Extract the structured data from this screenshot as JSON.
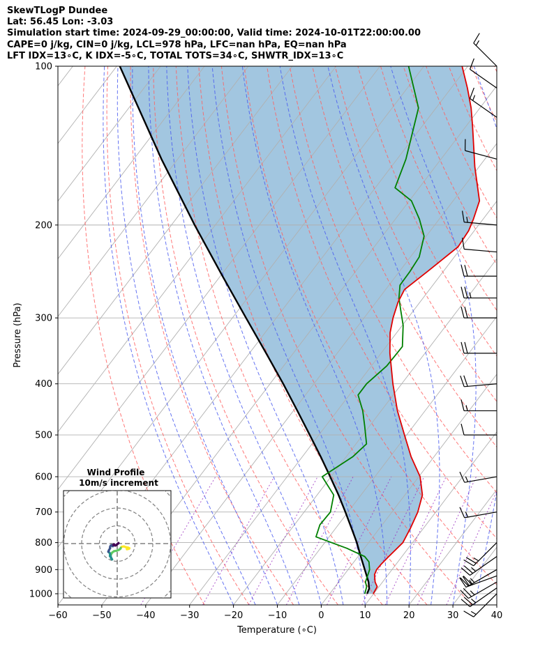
{
  "header": {
    "line1": "SkewTLogP Dundee",
    "line2": "Lat: 56.45   Lon: -3.03",
    "line3": "Simulation start time: 2024-09-29_00:00:00, Valid time: 2024-10-01T22:00:00.00",
    "line4": "CAPE=0 j/kg, CIN=0 j/kg, LCL=978 hPa, LFC=nan hPa, EQ=nan hPa",
    "line5": "LFT IDX=13∘C, K IDX=-5∘C, TOTAL TOTS=34∘C, SHWTR_IDX=13∘C"
  },
  "chart_data": [
    {
      "type": "line",
      "subtype": "skew-t log-p",
      "xlabel": "Temperature (∘C)",
      "ylabel": "Pressure (hPa)",
      "xlim": [
        -60,
        40
      ],
      "ylim": [
        1050,
        100
      ],
      "yscale": "log",
      "xticks": [
        "−60",
        "−50",
        "−40",
        "−30",
        "−20",
        "−10",
        "0",
        "10",
        "20",
        "30",
        "40"
      ],
      "xtick_values": [
        -60,
        -50,
        -40,
        -30,
        -20,
        -10,
        0,
        10,
        20,
        30,
        40
      ],
      "yticks": [
        "100",
        "200",
        "300",
        "400",
        "500",
        "600",
        "700",
        "800",
        "900",
        "1000"
      ],
      "ytick_values": [
        100,
        200,
        300,
        400,
        500,
        600,
        700,
        800,
        900,
        1000
      ],
      "grid": true,
      "colors": {
        "temperature": "#e00000",
        "dewpoint": "#008000",
        "parcel": "#000000",
        "cape_fill": "#a2c6e0",
        "dry_adiabat": "#ff6060",
        "moist_adiabat": "#4a5cf0",
        "mixing_ratio": "#9b30c0",
        "isotherm": "#b0b0b0"
      },
      "series": [
        {
          "key": "temperature",
          "points": [
            [
              1000,
              9.9
            ],
            [
              970,
              9.6
            ],
            [
              950,
              8.3
            ],
            [
              920,
              6.9
            ],
            [
              900,
              6.5
            ],
            [
              880,
              6.6
            ],
            [
              850,
              7.0
            ],
            [
              800,
              7.8
            ],
            [
              750,
              7.0
            ],
            [
              700,
              5.9
            ],
            [
              650,
              4.0
            ],
            [
              600,
              0.3
            ],
            [
              550,
              -5.2
            ],
            [
              500,
              -10.5
            ],
            [
              450,
              -16.3
            ],
            [
              400,
              -22.0
            ],
            [
              350,
              -28.0
            ],
            [
              320,
              -31.5
            ],
            [
              300,
              -33.4
            ],
            [
              280,
              -35.0
            ],
            [
              265,
              -35.7
            ],
            [
              245,
              -33.6
            ],
            [
              220,
              -30.9
            ],
            [
              205,
              -31.3
            ],
            [
              195,
              -32.2
            ],
            [
              180,
              -34.0
            ],
            [
              155,
              -41.0
            ],
            [
              130,
              -48.5
            ],
            [
              120,
              -52.0
            ],
            [
              110,
              -56.3
            ],
            [
              100,
              -61.3
            ]
          ]
        },
        {
          "key": "dewpoint",
          "points": [
            [
              1000,
              8.0
            ],
            [
              970,
              7.2
            ],
            [
              950,
              6.1
            ],
            [
              920,
              5.4
            ],
            [
              900,
              4.9
            ],
            [
              870,
              3.4
            ],
            [
              850,
              1.5
            ],
            [
              820,
              -4.0
            ],
            [
              780,
              -13.0
            ],
            [
              740,
              -14.2
            ],
            [
              700,
              -14.0
            ],
            [
              650,
              -16.2
            ],
            [
              600,
              -22.0
            ],
            [
              550,
              -18.5
            ],
            [
              520,
              -17.6
            ],
            [
              480,
              -21.2
            ],
            [
              450,
              -24.2
            ],
            [
              420,
              -28.0
            ],
            [
              400,
              -28.0
            ],
            [
              370,
              -26.5
            ],
            [
              340,
              -26.3
            ],
            [
              310,
              -29.8
            ],
            [
              290,
              -33.0
            ],
            [
              275,
              -35.5
            ],
            [
              260,
              -37.5
            ],
            [
              245,
              -37.6
            ],
            [
              230,
              -38.0
            ],
            [
              210,
              -40.5
            ],
            [
              195,
              -44.5
            ],
            [
              180,
              -49.5
            ],
            [
              170,
              -55.5
            ],
            [
              150,
              -58.0
            ],
            [
              120,
              -64.0
            ],
            [
              100,
              -73.5
            ]
          ]
        },
        {
          "key": "parcel",
          "points": [
            [
              1000,
              8.5
            ],
            [
              978,
              8.1
            ],
            [
              950,
              6.8
            ],
            [
              900,
              3.8
            ],
            [
              850,
              0.6
            ],
            [
              800,
              -2.7
            ],
            [
              750,
              -6.5
            ],
            [
              700,
              -10.6
            ],
            [
              650,
              -15.1
            ],
            [
              600,
              -20.2
            ],
            [
              550,
              -25.8
            ],
            [
              500,
              -32.1
            ],
            [
              450,
              -39.1
            ],
            [
              400,
              -47.0
            ],
            [
              350,
              -56.2
            ],
            [
              300,
              -66.9
            ],
            [
              250,
              -79.5
            ],
            [
              200,
              -94.7
            ],
            [
              150,
              -113.7
            ],
            [
              100,
              -139.3
            ]
          ]
        }
      ],
      "wind_barbs": [
        {
          "pressure": 1000,
          "speed_kt": 15,
          "direction": 225
        },
        {
          "pressure": 975,
          "speed_kt": 25,
          "direction": 235
        },
        {
          "pressure": 950,
          "speed_kt": 25,
          "direction": 240
        },
        {
          "pressure": 925,
          "speed_kt": 25,
          "direction": 250
        },
        {
          "pressure": 900,
          "speed_kt": 25,
          "direction": 240
        },
        {
          "pressure": 850,
          "speed_kt": 25,
          "direction": 235
        },
        {
          "pressure": 800,
          "speed_kt": 25,
          "direction": 225
        },
        {
          "pressure": 700,
          "speed_kt": 15,
          "direction": 260
        },
        {
          "pressure": 600,
          "speed_kt": 15,
          "direction": 260
        },
        {
          "pressure": 500,
          "speed_kt": 10,
          "direction": 270
        },
        {
          "pressure": 450,
          "speed_kt": 15,
          "direction": 270
        },
        {
          "pressure": 400,
          "speed_kt": 20,
          "direction": 265
        },
        {
          "pressure": 350,
          "speed_kt": 20,
          "direction": 270
        },
        {
          "pressure": 300,
          "speed_kt": 20,
          "direction": 270
        },
        {
          "pressure": 275,
          "speed_kt": 25,
          "direction": 270
        },
        {
          "pressure": 250,
          "speed_kt": 20,
          "direction": 270
        },
        {
          "pressure": 225,
          "speed_kt": 10,
          "direction": 275
        },
        {
          "pressure": 200,
          "speed_kt": 15,
          "direction": 275
        },
        {
          "pressure": 150,
          "speed_kt": 10,
          "direction": 285
        },
        {
          "pressure": 125,
          "speed_kt": 15,
          "direction": 305
        },
        {
          "pressure": 110,
          "speed_kt": 10,
          "direction": 305
        },
        {
          "pressure": 100,
          "speed_kt": 15,
          "direction": 315
        }
      ]
    },
    {
      "type": "line",
      "subtype": "hodograph",
      "title": "Wind Profile",
      "subtitle": "10m/s increment",
      "ring_spacing_ms": 10,
      "grid": true,
      "colormap": [
        "#440154",
        "#3b528b",
        "#21918c",
        "#5ec962",
        "#fde725"
      ],
      "points_uv": [
        [
          5.4,
          -3.2
        ],
        [
          6.6,
          -2.9
        ],
        [
          6.8,
          -2.6
        ],
        [
          6.2,
          -2.3
        ],
        [
          4.8,
          -2.0
        ],
        [
          3.8,
          -1.6
        ],
        [
          2.5,
          -1.8
        ],
        [
          2.0,
          -2.4
        ],
        [
          1.8,
          -2.9
        ],
        [
          1.0,
          -3.5
        ],
        [
          -0.3,
          -4.0
        ],
        [
          -1.8,
          -4.3
        ],
        [
          -2.8,
          -5.0
        ],
        [
          -3.4,
          -5.9
        ],
        [
          -3.7,
          -7.0
        ],
        [
          -3.4,
          -8.4
        ],
        [
          -2.9,
          -8.9
        ],
        [
          -3.5,
          -7.8
        ],
        [
          -4.1,
          -7.0
        ],
        [
          -4.0,
          -6.0
        ],
        [
          -4.3,
          -5.2
        ],
        [
          -5.0,
          -4.6
        ],
        [
          -4.7,
          -3.8
        ],
        [
          -4.0,
          -2.6
        ],
        [
          -4.0,
          -1.9
        ],
        [
          -3.7,
          -1.2
        ],
        [
          -3.1,
          -0.9
        ],
        [
          -2.5,
          -1.5
        ],
        [
          -2.2,
          -0.8
        ],
        [
          -1.8,
          -0.4
        ],
        [
          -1.2,
          -1.1
        ],
        [
          -0.6,
          -0.9
        ],
        [
          -0.2,
          -0.5
        ],
        [
          0.1,
          -0.3
        ],
        [
          0.7,
          0.3
        ],
        [
          0.5,
          0.0
        ]
      ]
    }
  ]
}
